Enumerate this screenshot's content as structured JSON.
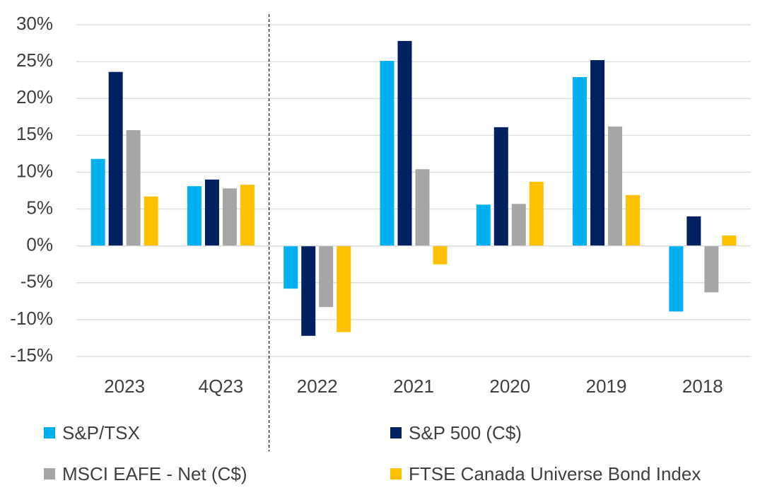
{
  "chart_data": {
    "type": "bar",
    "categories": [
      "2023",
      "4Q23",
      "2022",
      "2021",
      "2020",
      "2019",
      "2018"
    ],
    "series": [
      {
        "name": "S&P/TSX",
        "color": "#00B0F0",
        "values": [
          11.8,
          8.1,
          -5.8,
          25.1,
          5.6,
          22.9,
          -8.9
        ]
      },
      {
        "name": "S&P 500 (C$)",
        "color": "#002060",
        "values": [
          23.6,
          9.0,
          -12.2,
          27.8,
          16.1,
          25.2,
          4.0
        ]
      },
      {
        "name": "MSCI EAFE - Net (C$)",
        "color": "#A6A6A6",
        "values": [
          15.7,
          7.8,
          -8.3,
          10.4,
          5.7,
          16.2,
          -6.3
        ]
      },
      {
        "name": "FTSE Canada Universe Bond Index",
        "color": "#FFC000",
        "values": [
          6.7,
          8.3,
          -11.7,
          -2.5,
          8.7,
          6.9,
          1.4
        ]
      }
    ],
    "ylim": [
      -15,
      30
    ],
    "yticks": [
      -15,
      -10,
      -5,
      0,
      5,
      10,
      15,
      20,
      25,
      30
    ],
    "ytick_labels": [
      "-15%",
      "-10%",
      "-5%",
      "0%",
      "5%",
      "10%",
      "15%",
      "20%",
      "25%",
      "30%"
    ],
    "grid": true,
    "divider_after_category": "4Q23",
    "legend_position": "bottom",
    "title": "",
    "xlabel": "",
    "ylabel": ""
  }
}
